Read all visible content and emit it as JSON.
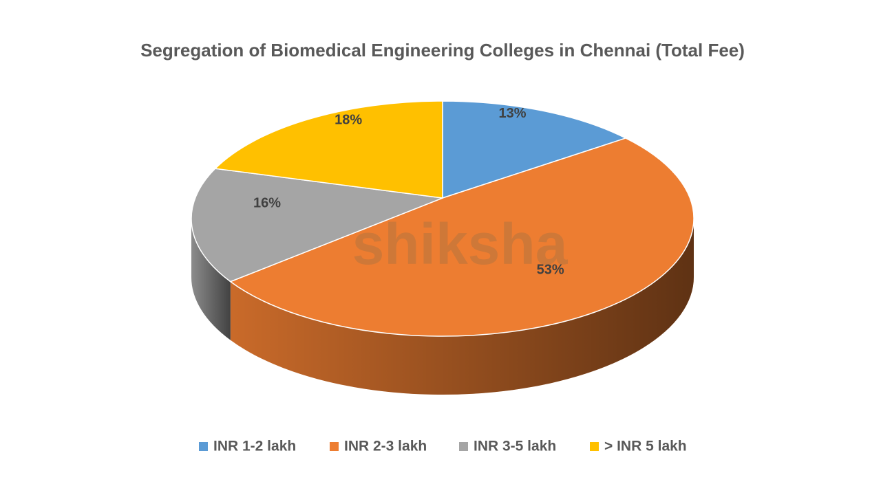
{
  "chart_data": {
    "type": "pie",
    "title": "Segregation of Biomedical Engineering Colleges in Chennai (Total Fee)",
    "watermark": "shiksha",
    "categories": [
      "INR 1-2 lakh",
      "INR 2-3 lakh",
      "INR 3-5 lakh",
      "> INR 5 lakh"
    ],
    "values": [
      13,
      53,
      16,
      18
    ],
    "value_labels": [
      "13%",
      "53%",
      "16%",
      "18%"
    ],
    "colors": [
      "#5b9bd5",
      "#ed7d31",
      "#a5a5a5",
      "#ffc000"
    ],
    "legend": "bottom"
  }
}
